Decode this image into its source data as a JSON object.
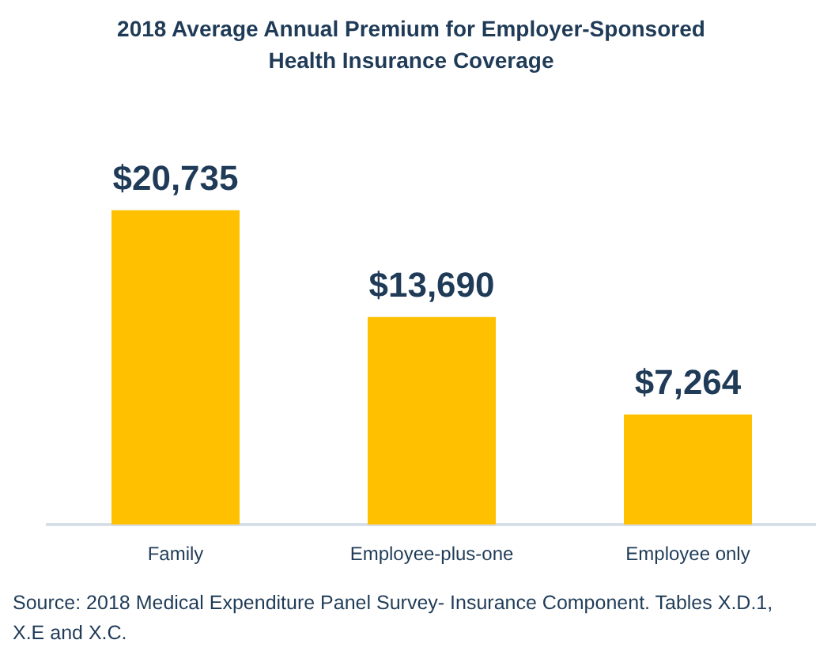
{
  "chart_data": {
    "type": "bar",
    "title": "2018 Average Annual Premium for Employer-Sponsored Health Insurance Coverage",
    "categories": [
      "Family",
      "Employee-plus-one",
      "Employee only"
    ],
    "values": [
      20735,
      13690,
      7264
    ],
    "value_labels": [
      "$20,735",
      "$13,690",
      "$7,264"
    ],
    "color": "#ffc000",
    "tick_labels": "x",
    "grid": false,
    "legend": false,
    "annotations": [
      "Source:  2018 Medical Expenditure Panel Survey- Insurance Component. Tables X.D.1, X.E and X.C."
    ]
  }
}
